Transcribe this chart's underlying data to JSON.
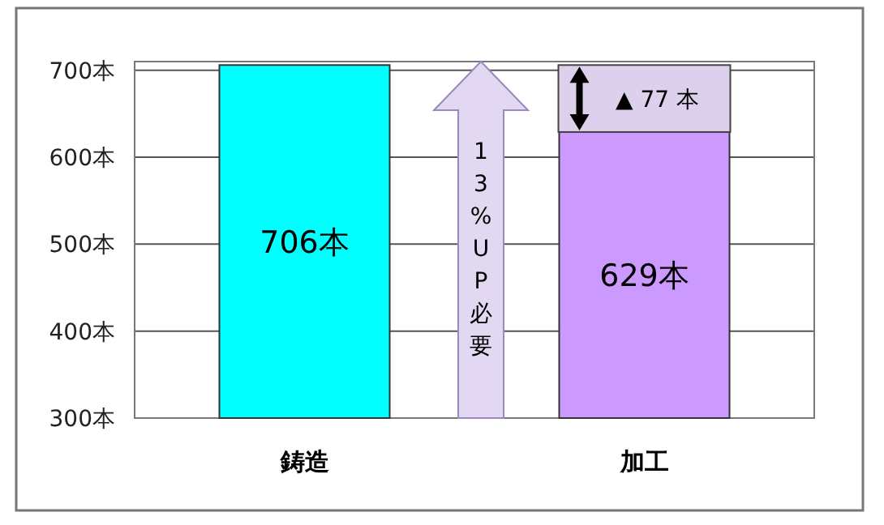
{
  "chart_data": {
    "type": "bar",
    "categories": [
      "鋳造",
      "加工"
    ],
    "values": [
      706,
      629
    ],
    "colors": [
      "#00ffff",
      "#cc99ff"
    ],
    "value_labels": [
      "706本",
      "629本"
    ],
    "ylim": [
      300,
      710
    ],
    "yticks": [
      {
        "value": 300,
        "label": "300本"
      },
      {
        "value": 400,
        "label": "400本"
      },
      {
        "value": 500,
        "label": "500本"
      },
      {
        "value": 600,
        "label": "600本"
      },
      {
        "value": 700,
        "label": "700本"
      }
    ],
    "grid": "y",
    "annotations": [
      "▲ 77 本",
      "13%UP必要"
    ]
  }
}
